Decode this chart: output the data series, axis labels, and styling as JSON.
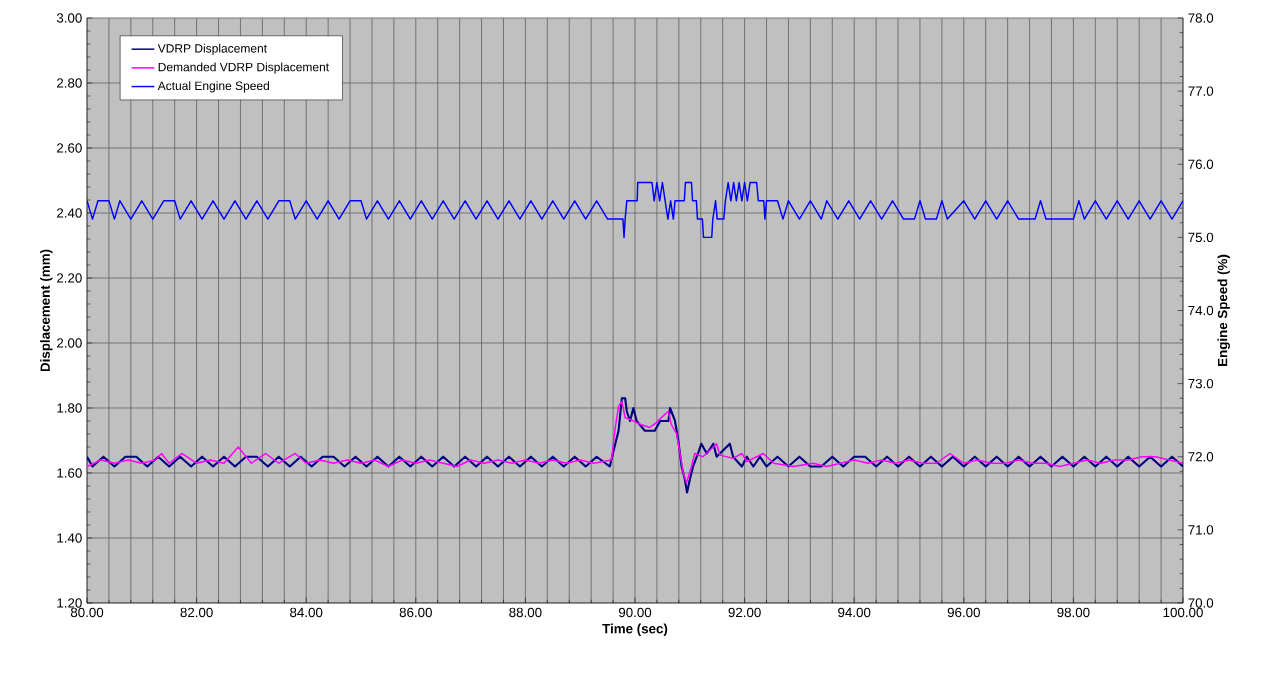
{
  "chart_data": {
    "type": "line",
    "xlabel": "Time (sec)",
    "ylabel": "Displacement (mm)",
    "y2label": "Engine Speed (%)",
    "xlim": [
      80,
      100
    ],
    "ylim": [
      1.2,
      3.0
    ],
    "y2lim": [
      70,
      78
    ],
    "xticks": [
      {
        "value": 80,
        "label": "80.00"
      },
      {
        "value": 82,
        "label": "82.00"
      },
      {
        "value": 84,
        "label": "84.00"
      },
      {
        "value": 86,
        "label": "86.00"
      },
      {
        "value": 88,
        "label": "88.00"
      },
      {
        "value": 90,
        "label": "90.00"
      },
      {
        "value": 92,
        "label": "92.00"
      },
      {
        "value": 94,
        "label": "94.00"
      },
      {
        "value": 96,
        "label": "96.00"
      },
      {
        "value": 98,
        "label": "98.00"
      },
      {
        "value": 100,
        "label": "100.00"
      }
    ],
    "yticks": [
      {
        "value": 1.2,
        "label": "1.20"
      },
      {
        "value": 1.4,
        "label": "1.40"
      },
      {
        "value": 1.6,
        "label": "1.60"
      },
      {
        "value": 1.8,
        "label": "1.80"
      },
      {
        "value": 2.0,
        "label": "2.00"
      },
      {
        "value": 2.2,
        "label": "2.20"
      },
      {
        "value": 2.4,
        "label": "2.40"
      },
      {
        "value": 2.6,
        "label": "2.60"
      },
      {
        "value": 2.8,
        "label": "2.80"
      },
      {
        "value": 3.0,
        "label": "3.00"
      }
    ],
    "y2ticks": [
      {
        "value": 70,
        "label": "70.0"
      },
      {
        "value": 71,
        "label": "71.0"
      },
      {
        "value": 72,
        "label": "72.0"
      },
      {
        "value": 73,
        "label": "73.0"
      },
      {
        "value": 74,
        "label": "74.0"
      },
      {
        "value": 75,
        "label": "75.0"
      },
      {
        "value": 76,
        "label": "76.0"
      },
      {
        "value": 77,
        "label": "77.0"
      },
      {
        "value": 78,
        "label": "78.0"
      }
    ],
    "grid": true,
    "legend": "top left",
    "marker": "none",
    "line_style": "solid",
    "series": [
      {
        "name": "VDRP Displacement",
        "color": "#000080",
        "x": [
          80.0,
          80.1,
          80.3,
          80.5,
          80.7,
          80.9,
          81.1,
          81.3,
          81.5,
          81.7,
          81.9,
          82.1,
          82.3,
          82.5,
          82.7,
          82.9,
          83.1,
          83.3,
          83.5,
          83.7,
          83.9,
          84.1,
          84.3,
          84.5,
          84.7,
          84.9,
          85.1,
          85.3,
          85.5,
          85.7,
          85.9,
          86.1,
          86.3,
          86.5,
          86.7,
          86.9,
          87.1,
          87.3,
          87.5,
          87.7,
          87.9,
          88.1,
          88.3,
          88.5,
          88.7,
          88.9,
          89.1,
          89.3,
          89.54,
          89.64,
          89.7,
          89.76,
          89.82,
          89.85,
          89.91,
          89.97,
          90.03,
          90.18,
          90.36,
          90.46,
          90.61,
          90.64,
          90.73,
          90.79,
          90.85,
          90.91,
          90.95,
          91.0,
          91.06,
          91.15,
          91.21,
          91.31,
          91.43,
          91.49,
          91.73,
          91.79,
          91.95,
          92.04,
          92.16,
          92.28,
          92.4,
          92.6,
          92.8,
          93.0,
          93.2,
          93.4,
          93.6,
          93.8,
          94.0,
          94.2,
          94.4,
          94.6,
          94.8,
          95.0,
          95.2,
          95.4,
          95.6,
          95.8,
          96.0,
          96.2,
          96.4,
          96.6,
          96.8,
          97.0,
          97.2,
          97.4,
          97.6,
          97.8,
          98.0,
          98.2,
          98.4,
          98.6,
          98.8,
          99.0,
          99.2,
          99.4,
          99.6,
          99.8,
          100.0
        ],
        "values": [
          1.65,
          1.62,
          1.65,
          1.62,
          1.65,
          1.65,
          1.62,
          1.65,
          1.62,
          1.65,
          1.62,
          1.65,
          1.62,
          1.65,
          1.62,
          1.65,
          1.65,
          1.62,
          1.65,
          1.62,
          1.65,
          1.62,
          1.65,
          1.65,
          1.62,
          1.65,
          1.62,
          1.65,
          1.62,
          1.65,
          1.62,
          1.65,
          1.62,
          1.65,
          1.62,
          1.65,
          1.62,
          1.65,
          1.62,
          1.65,
          1.62,
          1.65,
          1.62,
          1.65,
          1.62,
          1.65,
          1.62,
          1.65,
          1.62,
          1.69,
          1.73,
          1.83,
          1.83,
          1.79,
          1.76,
          1.8,
          1.76,
          1.73,
          1.73,
          1.76,
          1.76,
          1.8,
          1.76,
          1.7,
          1.62,
          1.58,
          1.54,
          1.58,
          1.62,
          1.66,
          1.69,
          1.66,
          1.69,
          1.65,
          1.69,
          1.65,
          1.62,
          1.65,
          1.62,
          1.65,
          1.62,
          1.65,
          1.62,
          1.65,
          1.62,
          1.62,
          1.65,
          1.62,
          1.65,
          1.65,
          1.62,
          1.65,
          1.62,
          1.65,
          1.62,
          1.65,
          1.62,
          1.65,
          1.62,
          1.65,
          1.62,
          1.65,
          1.62,
          1.65,
          1.62,
          1.65,
          1.62,
          1.65,
          1.62,
          1.65,
          1.62,
          1.65,
          1.62,
          1.65,
          1.62,
          1.65,
          1.62,
          1.65,
          1.62
        ]
      },
      {
        "name": "Demanded VDRP Displacement",
        "color": "#ff00ff",
        "x": [
          80.0,
          80.25,
          80.5,
          80.75,
          81.0,
          81.25,
          81.36,
          81.5,
          81.73,
          82.0,
          82.25,
          82.5,
          82.76,
          83.0,
          83.26,
          83.5,
          83.8,
          84.0,
          84.25,
          84.5,
          84.75,
          85.0,
          85.25,
          85.5,
          85.75,
          86.0,
          86.25,
          86.5,
          86.75,
          87.0,
          87.25,
          87.5,
          87.75,
          88.0,
          88.25,
          88.5,
          88.75,
          89.0,
          89.25,
          89.57,
          89.64,
          89.7,
          89.76,
          89.82,
          89.91,
          90.09,
          90.27,
          90.39,
          90.51,
          90.61,
          90.66,
          90.76,
          90.82,
          90.88,
          90.94,
          91.03,
          91.09,
          91.24,
          91.49,
          91.55,
          91.79,
          91.95,
          92.04,
          92.34,
          92.53,
          92.89,
          93.25,
          93.5,
          93.75,
          94.0,
          94.25,
          94.5,
          94.75,
          95.0,
          95.25,
          95.5,
          95.75,
          96.0,
          96.25,
          96.5,
          96.75,
          97.0,
          97.25,
          97.5,
          97.75,
          98.0,
          98.25,
          98.5,
          98.75,
          99.0,
          99.25,
          99.5,
          99.75,
          100.0
        ],
        "values": [
          1.62,
          1.64,
          1.63,
          1.64,
          1.63,
          1.64,
          1.66,
          1.63,
          1.66,
          1.63,
          1.64,
          1.63,
          1.68,
          1.63,
          1.66,
          1.63,
          1.66,
          1.63,
          1.64,
          1.63,
          1.64,
          1.63,
          1.64,
          1.62,
          1.64,
          1.63,
          1.64,
          1.63,
          1.62,
          1.64,
          1.63,
          1.64,
          1.63,
          1.64,
          1.63,
          1.64,
          1.63,
          1.64,
          1.63,
          1.64,
          1.74,
          1.805,
          1.82,
          1.77,
          1.765,
          1.75,
          1.74,
          1.755,
          1.775,
          1.79,
          1.75,
          1.72,
          1.66,
          1.6,
          1.57,
          1.62,
          1.66,
          1.65,
          1.69,
          1.655,
          1.645,
          1.66,
          1.635,
          1.66,
          1.63,
          1.62,
          1.63,
          1.62,
          1.63,
          1.64,
          1.63,
          1.64,
          1.63,
          1.64,
          1.63,
          1.63,
          1.66,
          1.63,
          1.64,
          1.63,
          1.63,
          1.64,
          1.63,
          1.63,
          1.62,
          1.63,
          1.64,
          1.63,
          1.64,
          1.64,
          1.65,
          1.65,
          1.64,
          1.63
        ]
      },
      {
        "name": "Actual Engine Speed",
        "color": "#0000ff",
        "axis": "y2",
        "x": [
          80.0,
          80.1,
          80.2,
          80.4,
          80.5,
          80.6,
          80.8,
          81.0,
          81.2,
          81.4,
          81.6,
          81.7,
          81.9,
          82.1,
          82.3,
          82.5,
          82.7,
          82.9,
          83.1,
          83.3,
          83.5,
          83.7,
          83.8,
          84.0,
          84.2,
          84.4,
          84.6,
          84.8,
          85.0,
          85.1,
          85.3,
          85.5,
          85.7,
          85.9,
          86.1,
          86.3,
          86.5,
          86.7,
          86.9,
          87.1,
          87.3,
          87.5,
          87.7,
          87.9,
          88.1,
          88.3,
          88.5,
          88.7,
          88.9,
          89.1,
          89.3,
          89.5,
          89.78,
          89.8,
          89.82,
          89.85,
          90.04,
          90.05,
          90.31,
          90.35,
          90.4,
          90.45,
          90.5,
          90.55,
          90.6,
          90.65,
          90.7,
          90.73,
          90.9,
          90.92,
          91.03,
          91.05,
          91.12,
          91.14,
          91.23,
          91.25,
          91.4,
          91.42,
          91.47,
          91.5,
          91.62,
          91.65,
          91.7,
          91.75,
          91.8,
          91.85,
          91.9,
          91.95,
          92.0,
          92.05,
          92.1,
          92.22,
          92.25,
          92.35,
          92.37,
          92.4,
          92.6,
          92.7,
          92.8,
          93.0,
          93.2,
          93.4,
          93.5,
          93.7,
          93.9,
          94.1,
          94.3,
          94.5,
          94.7,
          94.9,
          95.1,
          95.2,
          95.3,
          95.5,
          95.6,
          95.7,
          96.0,
          96.2,
          96.4,
          96.6,
          96.8,
          97.0,
          97.3,
          97.4,
          97.5,
          98.0,
          98.1,
          98.2,
          98.4,
          98.6,
          98.8,
          99.0,
          99.2,
          99.4,
          99.6,
          99.8,
          100.0
        ],
        "values": [
          75.5,
          75.25,
          75.5,
          75.5,
          75.25,
          75.5,
          75.25,
          75.5,
          75.25,
          75.5,
          75.5,
          75.25,
          75.5,
          75.25,
          75.5,
          75.25,
          75.5,
          75.25,
          75.5,
          75.25,
          75.5,
          75.5,
          75.25,
          75.5,
          75.25,
          75.5,
          75.25,
          75.5,
          75.5,
          75.25,
          75.5,
          75.25,
          75.5,
          75.25,
          75.5,
          75.25,
          75.5,
          75.25,
          75.5,
          75.25,
          75.5,
          75.25,
          75.5,
          75.25,
          75.5,
          75.25,
          75.5,
          75.25,
          75.5,
          75.25,
          75.5,
          75.25,
          75.25,
          75.0,
          75.25,
          75.5,
          75.5,
          75.75,
          75.75,
          75.5,
          75.75,
          75.5,
          75.75,
          75.5,
          75.25,
          75.5,
          75.25,
          75.5,
          75.5,
          75.75,
          75.75,
          75.5,
          75.5,
          75.25,
          75.25,
          75.0,
          75.0,
          75.25,
          75.5,
          75.25,
          75.25,
          75.5,
          75.75,
          75.5,
          75.75,
          75.5,
          75.75,
          75.5,
          75.75,
          75.5,
          75.75,
          75.75,
          75.5,
          75.5,
          75.25,
          75.5,
          75.5,
          75.25,
          75.5,
          75.25,
          75.5,
          75.25,
          75.5,
          75.25,
          75.5,
          75.25,
          75.5,
          75.25,
          75.5,
          75.25,
          75.25,
          75.5,
          75.25,
          75.25,
          75.5,
          75.25,
          75.5,
          75.25,
          75.5,
          75.25,
          75.5,
          75.25,
          75.25,
          75.5,
          75.25,
          75.25,
          75.5,
          75.25,
          75.5,
          75.25,
          75.5,
          75.25,
          75.5,
          75.25,
          75.5,
          75.25,
          75.5
        ]
      }
    ]
  }
}
